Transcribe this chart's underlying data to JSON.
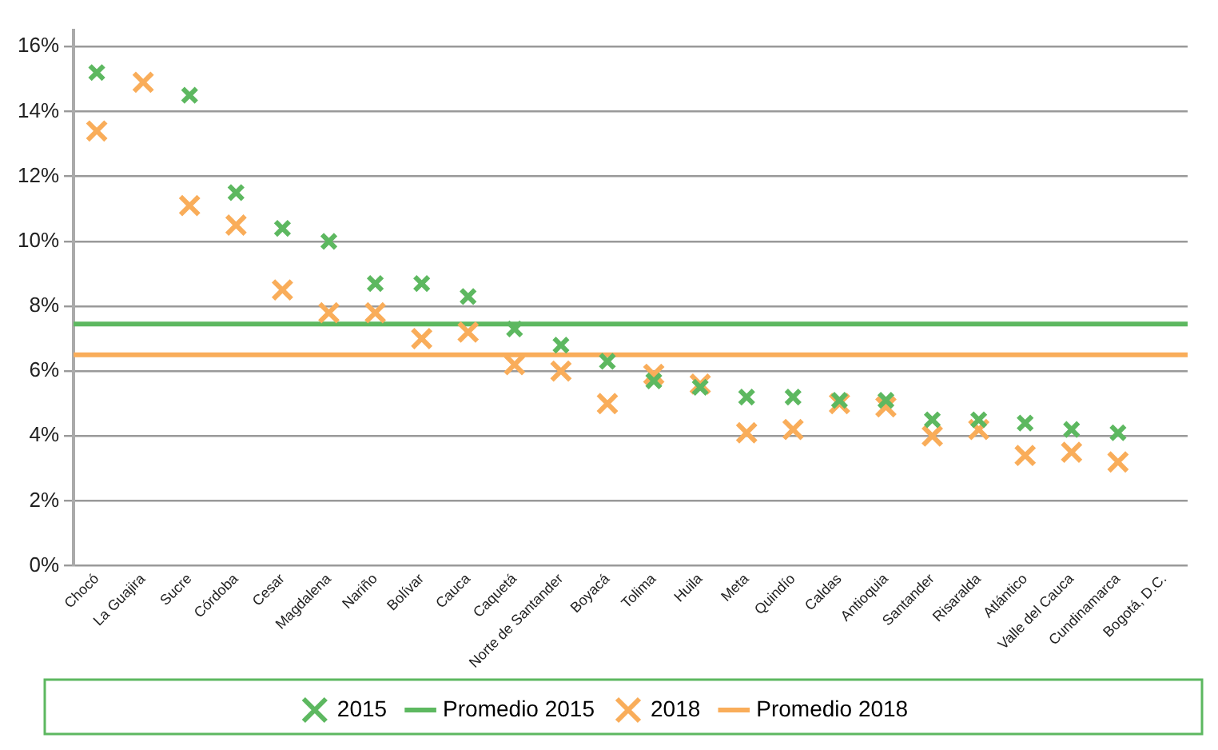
{
  "chart_data": {
    "type": "scatter",
    "categories": [
      "Chocó",
      "La Guajira",
      "Sucre",
      "Córdoba",
      "Cesar",
      "Magdalena",
      "Nariño",
      "Bolívar",
      "Cauca",
      "Caquetá",
      "Norte de Santander",
      "Boyacá",
      "Tolima",
      "Huila",
      "Meta",
      "Quindío",
      "Caldas",
      "Antioquia",
      "Santander",
      "Risaralda",
      "Atlántico",
      "Valle del Cauca",
      "Cundinamarca",
      "Bogotá, D.C."
    ],
    "series": [
      {
        "name": "2015",
        "color": "#5db860",
        "values": [
          15.2,
          null,
          14.5,
          11.5,
          10.4,
          10.0,
          8.7,
          8.7,
          8.3,
          7.3,
          6.8,
          6.3,
          5.7,
          5.5,
          5.2,
          5.2,
          5.1,
          5.1,
          4.5,
          4.5,
          4.4,
          4.2,
          4.1,
          null
        ]
      },
      {
        "name": "2018",
        "color": "#f9ad5a",
        "values": [
          13.4,
          14.9,
          11.1,
          10.5,
          8.5,
          7.8,
          7.8,
          7.0,
          7.2,
          6.2,
          6.0,
          5.0,
          5.9,
          5.6,
          4.1,
          4.2,
          5.0,
          4.9,
          4.0,
          4.2,
          3.4,
          3.5,
          3.2,
          null
        ]
      }
    ],
    "ref_lines": [
      {
        "axis": "y",
        "value": 7.45,
        "label": "Promedio 2015",
        "color": "#5db860"
      },
      {
        "axis": "y",
        "value": 6.5,
        "label": "Promedio 2018",
        "color": "#f9ad5a"
      }
    ],
    "ylim": [
      0,
      16.5
    ],
    "yticks": [
      {
        "value": 0,
        "label": "0%"
      },
      {
        "value": 2,
        "label": "2%"
      },
      {
        "value": 4,
        "label": "4%"
      },
      {
        "value": 6,
        "label": "6%"
      },
      {
        "value": 8,
        "label": "8%"
      },
      {
        "value": 10,
        "label": "10%"
      },
      {
        "value": 12,
        "label": "12%"
      },
      {
        "value": 14,
        "label": "14%"
      },
      {
        "value": 16,
        "label": "16%"
      }
    ],
    "grid": "y",
    "legend": "bottom",
    "marker": "cross"
  }
}
